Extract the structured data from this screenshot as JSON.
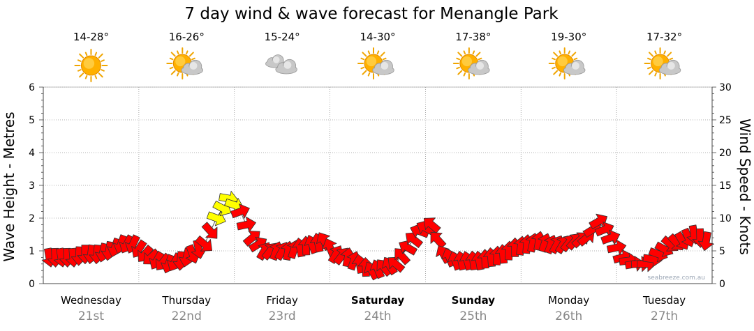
{
  "chart_data": {
    "type": "line",
    "title": "7 day wind & wave forecast for Menangle Park",
    "y_left_label": "Wave Height - Metres",
    "y_right_label": "Wind Speed - Knots",
    "y_left_ticks": [
      "0",
      "1",
      "2",
      "3",
      "4",
      "5",
      "6"
    ],
    "y_right_ticks": [
      "0",
      "5",
      "10",
      "15",
      "20",
      "25",
      "30"
    ],
    "y_left_range": [
      0,
      6
    ],
    "y_right_range": [
      0,
      30
    ],
    "grid": true,
    "days": [
      {
        "name": "Wednesday",
        "date": "21st",
        "bold": false,
        "temp": "14-28°",
        "icon": "sun-icon"
      },
      {
        "name": "Thursday",
        "date": "22nd",
        "bold": false,
        "temp": "16-26°",
        "icon": "sun-cloud-icon"
      },
      {
        "name": "Friday",
        "date": "23rd",
        "bold": false,
        "temp": "15-24°",
        "icon": "cloud-icon"
      },
      {
        "name": "Saturday",
        "date": "24th",
        "bold": true,
        "temp": "14-30°",
        "icon": "sun-cloud-icon"
      },
      {
        "name": "Sunday",
        "date": "25th",
        "bold": true,
        "temp": "17-38°",
        "icon": "sun-cloud-icon"
      },
      {
        "name": "Monday",
        "date": "26th",
        "bold": false,
        "temp": "19-30°",
        "icon": "sun-cloud-icon"
      },
      {
        "name": "Tuesday",
        "date": "27th",
        "bold": false,
        "temp": "17-32°",
        "icon": "sun-cloud-icon"
      }
    ],
    "series": [
      {
        "name": "Wind Speed - Knots",
        "unit": "knots",
        "points_per_day": 8,
        "values": [
          4,
          4,
          4,
          4.5,
          4.5,
          5,
          6,
          6,
          4.5,
          3.5,
          3,
          3.5,
          4.5,
          6,
          10,
          13,
          11,
          7,
          5,
          5,
          5,
          5.5,
          6,
          6.5,
          4.5,
          4,
          3,
          2,
          2.5,
          3,
          5.5,
          8,
          9,
          4.5,
          3.5,
          3.5,
          3.5,
          4,
          4.5,
          5.5,
          6,
          6.5,
          6,
          6,
          6.5,
          7,
          9.5,
          7,
          4,
          3,
          3,
          4.5,
          6,
          6.5,
          7.5,
          6.5
        ],
        "highlight_color": "#ffff00",
        "highlight_indices": [
          14,
          15
        ],
        "color": "#ff0000"
      }
    ],
    "direction_deg": [
      80,
      80,
      85,
      90,
      95,
      100,
      110,
      115,
      130,
      120,
      110,
      95,
      70,
      40,
      20,
      10,
      340,
      320,
      300,
      290,
      280,
      260,
      250,
      240,
      300,
      280,
      260,
      240,
      230,
      220,
      210,
      200,
      220,
      240,
      250,
      255,
      260,
      265,
      265,
      270,
      275,
      280,
      290,
      300,
      310,
      320,
      330,
      340,
      345,
      350,
      0,
      20,
      40,
      60,
      80,
      100
    ]
  },
  "watermark": "seabreeze.com.au"
}
